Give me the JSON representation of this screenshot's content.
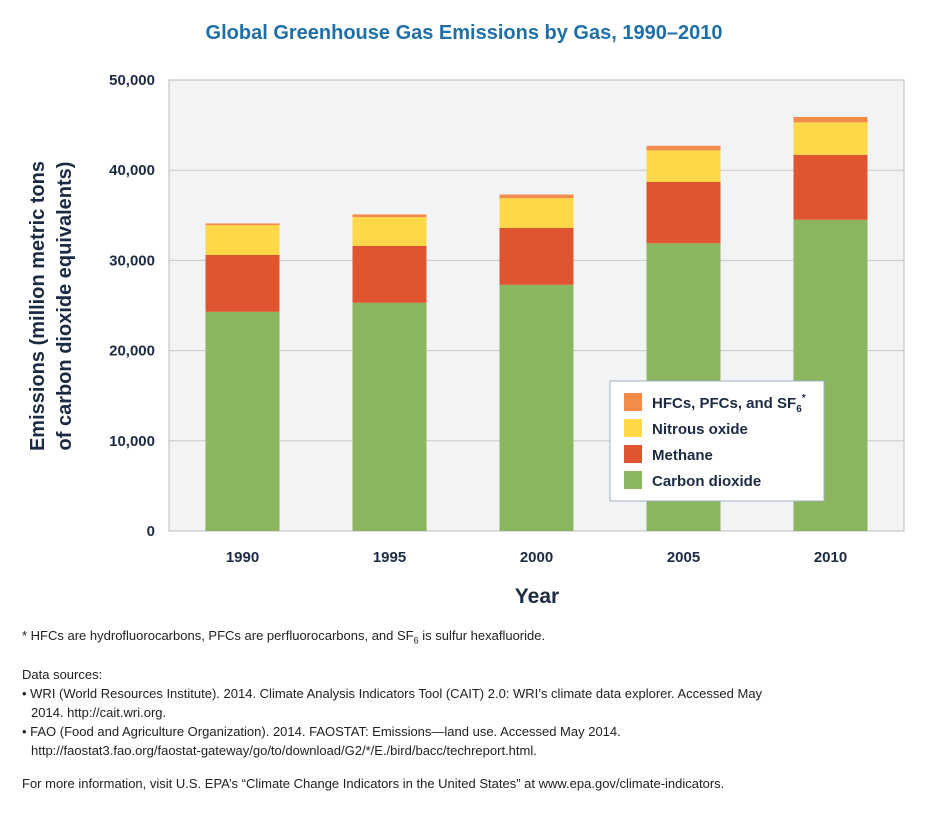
{
  "chart_data": {
    "type": "bar",
    "stacked": true,
    "title": "Global Greenhouse Gas Emissions by Gas, 1990–2010",
    "xlabel": "Year",
    "ylabel_line1": "Emissions (million metric tons",
    "ylabel_line2": "of carbon dioxide equivalents)",
    "categories": [
      "1990",
      "1995",
      "2000",
      "2005",
      "2010"
    ],
    "ylim": [
      0,
      50000
    ],
    "yticks": [
      0,
      10000,
      20000,
      30000,
      40000,
      50000
    ],
    "ytick_labels": [
      "0",
      "10,000",
      "20,000",
      "30,000",
      "40,000",
      "50,000"
    ],
    "grid": true,
    "legend_position": "lower-right inside plot",
    "series": [
      {
        "name": "Carbon dioxide",
        "color": "#8cb55f",
        "values": [
          24300,
          25300,
          27300,
          31900,
          34500
        ]
      },
      {
        "name": "Methane",
        "color": "#e05530",
        "values": [
          6300,
          6300,
          6300,
          6800,
          7200
        ]
      },
      {
        "name": "Nitrous oxide",
        "color": "#ffd84a",
        "values": [
          3300,
          3200,
          3300,
          3500,
          3600
        ]
      },
      {
        "name": "HFCs, PFCs, and SF6*",
        "color": "#f58b4a",
        "values": [
          200,
          300,
          400,
          500,
          600
        ]
      }
    ],
    "legend_items": [
      {
        "text": "HFCs, PFCs, and SF",
        "sub": "6",
        "sup": "*",
        "color": "#f58b4a"
      },
      {
        "text": "Nitrous oxide",
        "sub": "",
        "sup": "",
        "color": "#ffd84a"
      },
      {
        "text": "Methane",
        "sub": "",
        "sup": "",
        "color": "#e05530"
      },
      {
        "text": "Carbon dioxide",
        "sub": "",
        "sup": "",
        "color": "#8cb55f"
      }
    ]
  },
  "notes": {
    "footnote_a": "* HFCs are hydrofluorocarbons, PFCs are perfluorocarbons, and SF",
    "footnote_sub": "6",
    "footnote_b": " is sulfur hexafluoride.",
    "sources_heading": "Data sources:",
    "source_1_line1": "• WRI (World Resources Institute). 2014. Climate Analysis Indicators Tool (CAIT) 2.0: WRI’s climate data explorer. Accessed May",
    "source_1_line2": "2014. http://cait.wri.org.",
    "source_2_line1": "• FAO (Food and Agriculture Organization). 2014. FAOSTAT: Emissions—land use. Accessed May 2014.",
    "source_2_line2": "http://faostat3.fao.org/faostat-gateway/go/to/download/G2/*/E./bird/bacc/techreport.html.",
    "more_info": "For more information, visit U.S. EPA’s “Climate Change Indicators in the United States” at www.epa.gov/climate-indicators."
  },
  "colors": {
    "title": "#1f6fa8",
    "axis_text": "#1c2b44",
    "plot_background": "#f2f3f4",
    "gridline": "#c9c9c9"
  }
}
